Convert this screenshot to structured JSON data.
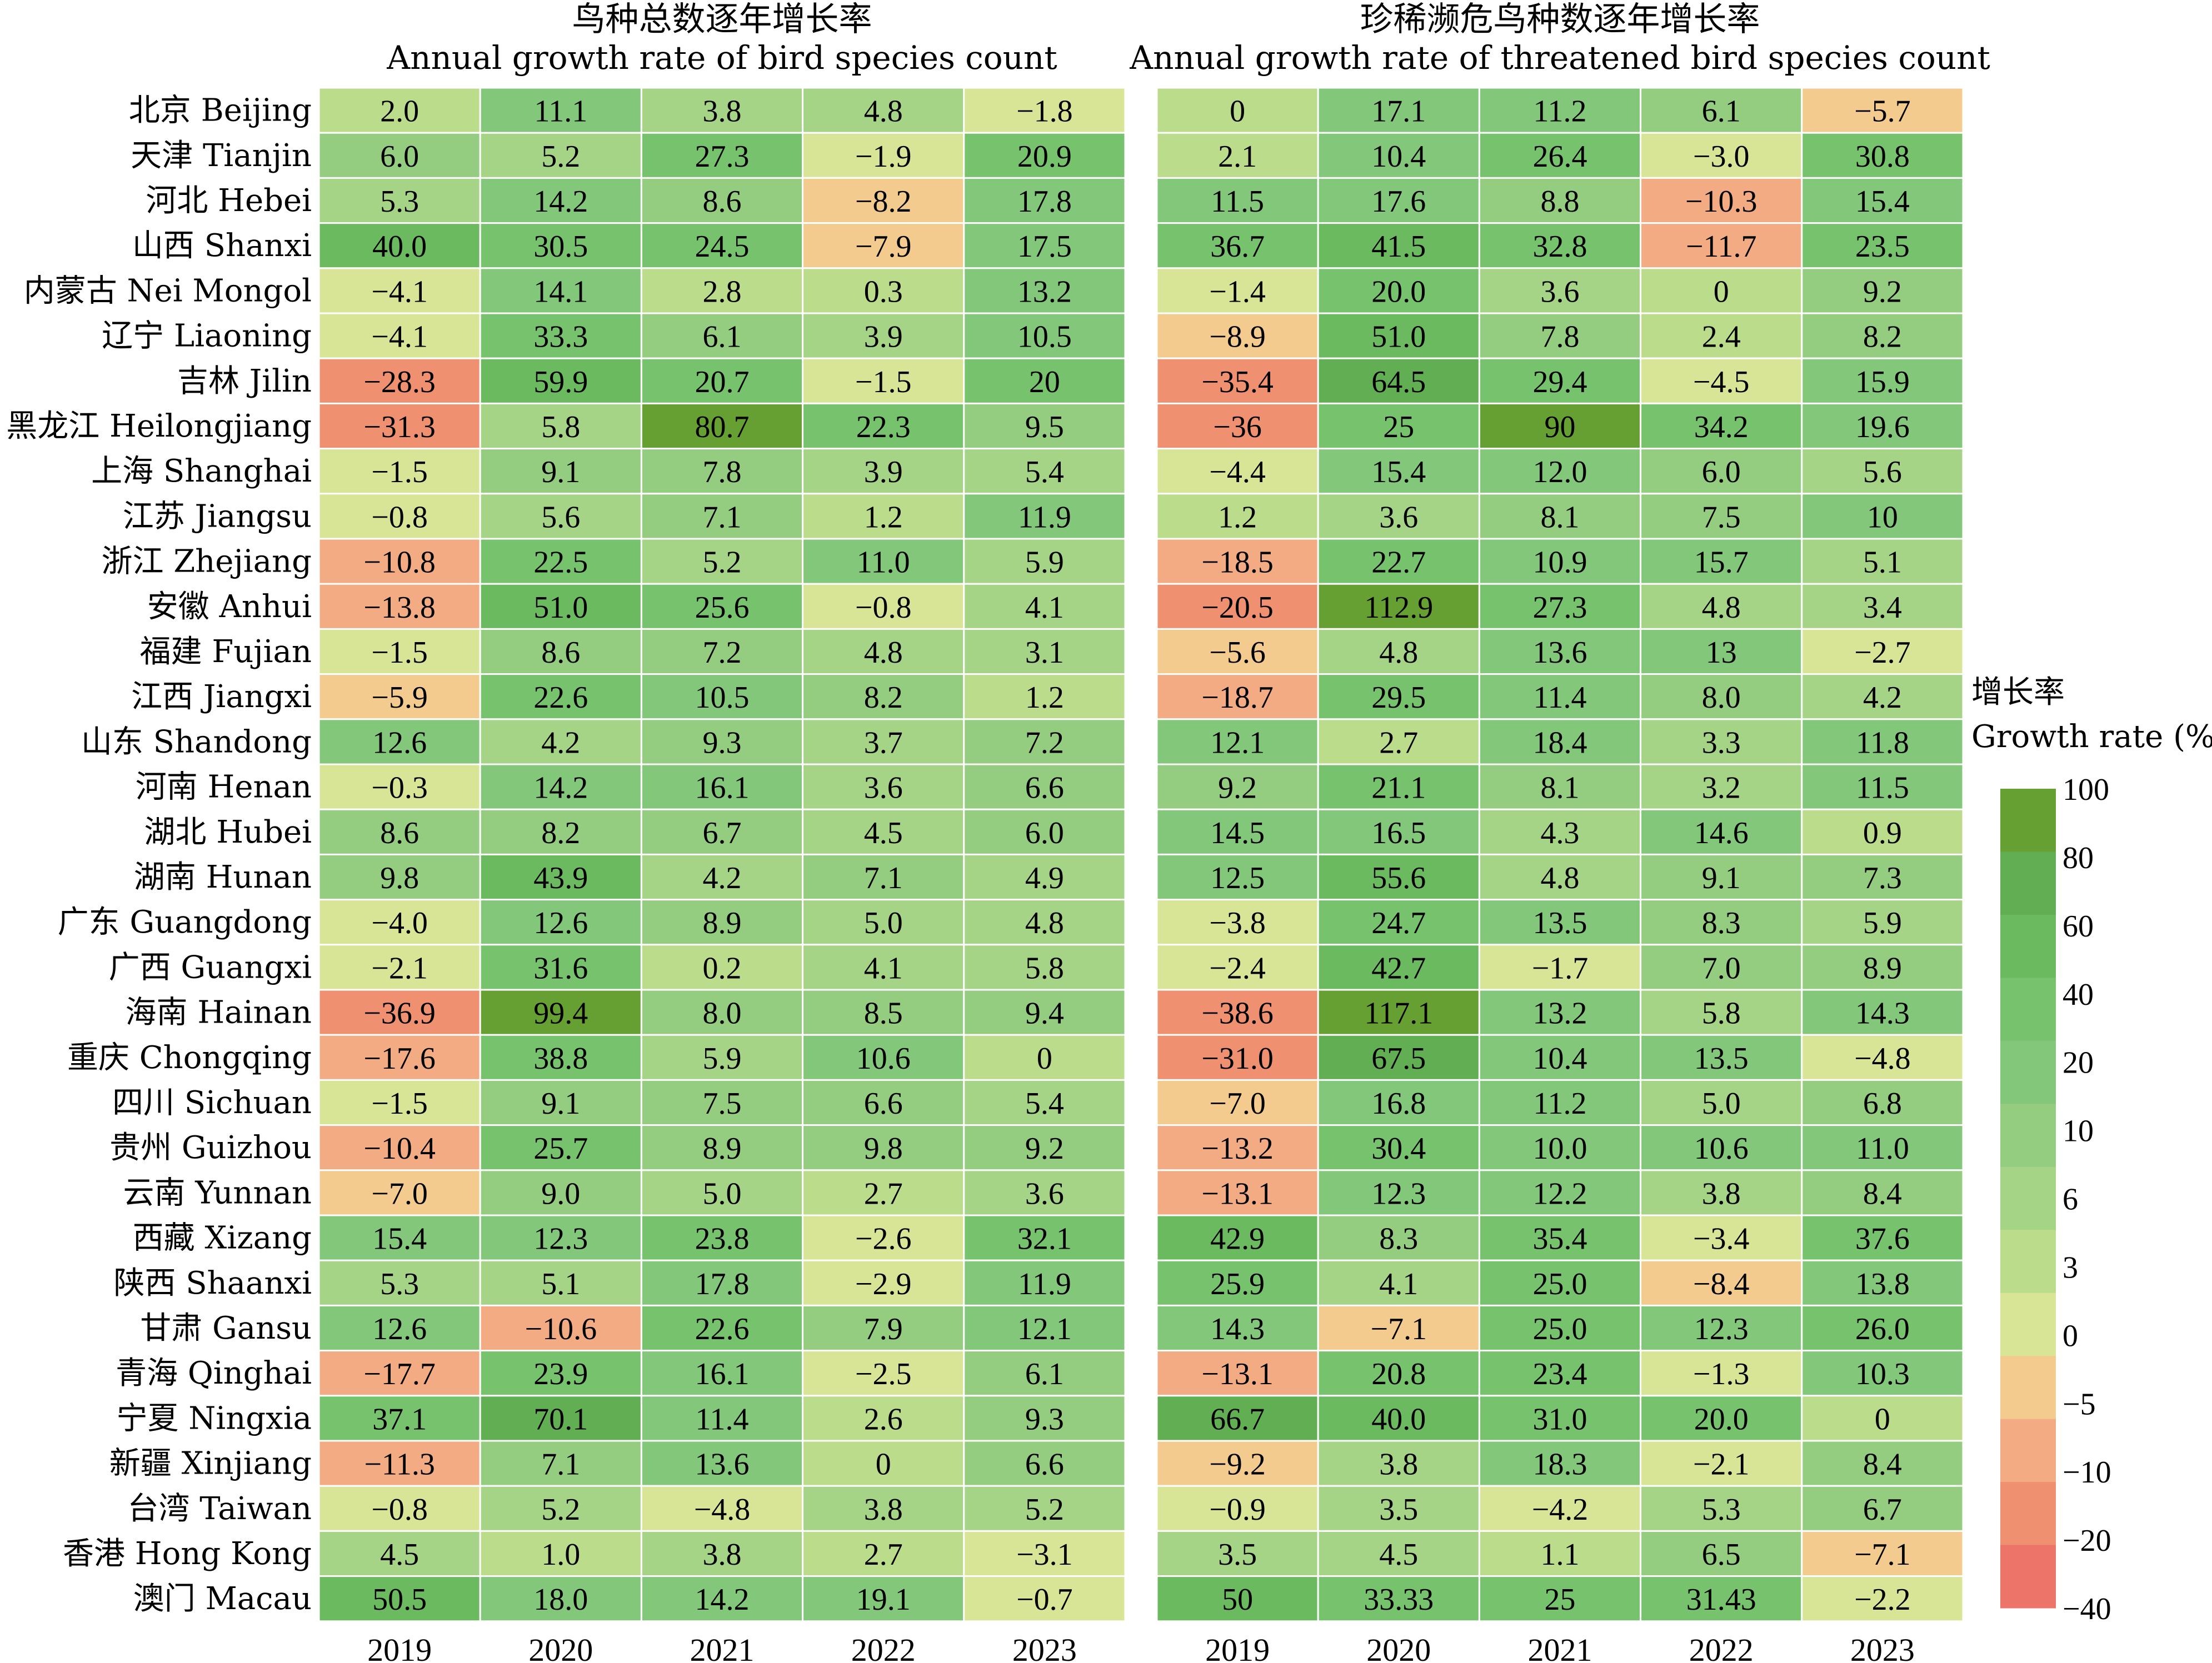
{
  "chart_data": {
    "type": "heatmap",
    "categories": [
      "2019",
      "2020",
      "2021",
      "2022",
      "2023"
    ],
    "rows": [
      "北京 Beijing",
      "天津 Tianjin",
      "河北 Hebei",
      "山西 Shanxi",
      "内蒙古 Nei Mongol",
      "辽宁 Liaoning",
      "吉林 Jilin",
      "黑龙江 Heilongjiang",
      "上海 Shanghai",
      "江苏 Jiangsu",
      "浙江 Zhejiang",
      "安徽 Anhui",
      "福建 Fujian",
      "江西 Jiangxi",
      "山东 Shandong",
      "河南 Henan",
      "湖北 Hubei",
      "湖南 Hunan",
      "广东 Guangdong",
      "广西 Guangxi",
      "海南 Hainan",
      "重庆 Chongqing",
      "四川 Sichuan",
      "贵州 Guizhou",
      "云南 Yunnan",
      "西藏 Xizang",
      "陕西 Shaanxi",
      "甘肃 Gansu",
      "青海 Qinghai",
      "宁夏 Ningxia",
      "新疆 Xinjiang",
      "台湾 Taiwan",
      "香港 Hong Kong",
      "澳门 Macau"
    ],
    "panels": [
      {
        "title_zh": "鸟种总数逐年增长率",
        "title_en": "Annual growth rate of bird species count",
        "values": [
          [
            "2.0",
            "11.1",
            "3.8",
            "4.8",
            "−1.8"
          ],
          [
            "6.0",
            "5.2",
            "27.3",
            "−1.9",
            "20.9"
          ],
          [
            "5.3",
            "14.2",
            "8.6",
            "−8.2",
            "17.8"
          ],
          [
            "40.0",
            "30.5",
            "24.5",
            "−7.9",
            "17.5"
          ],
          [
            "−4.1",
            "14.1",
            "2.8",
            "0.3",
            "13.2"
          ],
          [
            "−4.1",
            "33.3",
            "6.1",
            "3.9",
            "10.5"
          ],
          [
            "−28.3",
            "59.9",
            "20.7",
            "−1.5",
            "20"
          ],
          [
            "−31.3",
            "5.8",
            "80.7",
            "22.3",
            "9.5"
          ],
          [
            "−1.5",
            "9.1",
            "7.8",
            "3.9",
            "5.4"
          ],
          [
            "−0.8",
            "5.6",
            "7.1",
            "1.2",
            "11.9"
          ],
          [
            "−10.8",
            "22.5",
            "5.2",
            "11.0",
            "5.9"
          ],
          [
            "−13.8",
            "51.0",
            "25.6",
            "−0.8",
            "4.1"
          ],
          [
            "−1.5",
            "8.6",
            "7.2",
            "4.8",
            "3.1"
          ],
          [
            "−5.9",
            "22.6",
            "10.5",
            "8.2",
            "1.2"
          ],
          [
            "12.6",
            "4.2",
            "9.3",
            "3.7",
            "7.2"
          ],
          [
            "−0.3",
            "14.2",
            "16.1",
            "3.6",
            "6.6"
          ],
          [
            "8.6",
            "8.2",
            "6.7",
            "4.5",
            "6.0"
          ],
          [
            "9.8",
            "43.9",
            "4.2",
            "7.1",
            "4.9"
          ],
          [
            "−4.0",
            "12.6",
            "8.9",
            "5.0",
            "4.8"
          ],
          [
            "−2.1",
            "31.6",
            "0.2",
            "4.1",
            "5.8"
          ],
          [
            "−36.9",
            "99.4",
            "8.0",
            "8.5",
            "9.4"
          ],
          [
            "−17.6",
            "38.8",
            "5.9",
            "10.6",
            "0"
          ],
          [
            "−1.5",
            "9.1",
            "7.5",
            "6.6",
            "5.4"
          ],
          [
            "−10.4",
            "25.7",
            "8.9",
            "9.8",
            "9.2"
          ],
          [
            "−7.0",
            "9.0",
            "5.0",
            "2.7",
            "3.6"
          ],
          [
            "15.4",
            "12.3",
            "23.8",
            "−2.6",
            "32.1"
          ],
          [
            "5.3",
            "5.1",
            "17.8",
            "−2.9",
            "11.9"
          ],
          [
            "12.6",
            "−10.6",
            "22.6",
            "7.9",
            "12.1"
          ],
          [
            "−17.7",
            "23.9",
            "16.1",
            "−2.5",
            "6.1"
          ],
          [
            "37.1",
            "70.1",
            "11.4",
            "2.6",
            "9.3"
          ],
          [
            "−11.3",
            "7.1",
            "13.6",
            "0",
            "6.6"
          ],
          [
            "−0.8",
            "5.2",
            "−4.8",
            "3.8",
            "5.2"
          ],
          [
            "4.5",
            "1.0",
            "3.8",
            "2.7",
            "−3.1"
          ],
          [
            "50.5",
            "18.0",
            "14.2",
            "19.1",
            "−0.7"
          ]
        ]
      },
      {
        "title_zh": "珍稀濒危鸟种数逐年增长率",
        "title_en": "Annual growth rate of threatened bird species count",
        "values": [
          [
            "0",
            "17.1",
            "11.2",
            "6.1",
            "−5.7"
          ],
          [
            "2.1",
            "10.4",
            "26.4",
            "−3.0",
            "30.8"
          ],
          [
            "11.5",
            "17.6",
            "8.8",
            "−10.3",
            "15.4"
          ],
          [
            "36.7",
            "41.5",
            "32.8",
            "−11.7",
            "23.5"
          ],
          [
            "−1.4",
            "20.0",
            "3.6",
            "0",
            "9.2"
          ],
          [
            "−8.9",
            "51.0",
            "7.8",
            "2.4",
            "8.2"
          ],
          [
            "−35.4",
            "64.5",
            "29.4",
            "−4.5",
            "15.9"
          ],
          [
            "−36",
            "25",
            "90",
            "34.2",
            "19.6"
          ],
          [
            "−4.4",
            "15.4",
            "12.0",
            "6.0",
            "5.6"
          ],
          [
            "1.2",
            "3.6",
            "8.1",
            "7.5",
            "10"
          ],
          [
            "−18.5",
            "22.7",
            "10.9",
            "15.7",
            "5.1"
          ],
          [
            "−20.5",
            "112.9",
            "27.3",
            "4.8",
            "3.4"
          ],
          [
            "−5.6",
            "4.8",
            "13.6",
            "13",
            "−2.7"
          ],
          [
            "−18.7",
            "29.5",
            "11.4",
            "8.0",
            "4.2"
          ],
          [
            "12.1",
            "2.7",
            "18.4",
            "3.3",
            "11.8"
          ],
          [
            "9.2",
            "21.1",
            "8.1",
            "3.2",
            "11.5"
          ],
          [
            "14.5",
            "16.5",
            "4.3",
            "14.6",
            "0.9"
          ],
          [
            "12.5",
            "55.6",
            "4.8",
            "9.1",
            "7.3"
          ],
          [
            "−3.8",
            "24.7",
            "13.5",
            "8.3",
            "5.9"
          ],
          [
            "−2.4",
            "42.7",
            "−1.7",
            "7.0",
            "8.9"
          ],
          [
            "−38.6",
            "117.1",
            "13.2",
            "5.8",
            "14.3"
          ],
          [
            "−31.0",
            "67.5",
            "10.4",
            "13.5",
            "−4.8"
          ],
          [
            "−7.0",
            "16.8",
            "11.2",
            "5.0",
            "6.8"
          ],
          [
            "−13.2",
            "30.4",
            "10.0",
            "10.6",
            "11.0"
          ],
          [
            "−13.1",
            "12.3",
            "12.2",
            "3.8",
            "8.4"
          ],
          [
            "42.9",
            "8.3",
            "35.4",
            "−3.4",
            "37.6"
          ],
          [
            "25.9",
            "4.1",
            "25.0",
            "−8.4",
            "13.8"
          ],
          [
            "14.3",
            "−7.1",
            "25.0",
            "12.3",
            "26.0"
          ],
          [
            "−13.1",
            "20.8",
            "23.4",
            "−1.3",
            "10.3"
          ],
          [
            "66.7",
            "40.0",
            "31.0",
            "20.0",
            "0"
          ],
          [
            "−9.2",
            "3.8",
            "18.3",
            "−2.1",
            "8.4"
          ],
          [
            "−0.9",
            "3.5",
            "−4.2",
            "5.3",
            "6.7"
          ],
          [
            "3.5",
            "4.5",
            "1.1",
            "6.5",
            "−7.1"
          ],
          [
            "50",
            "33.33",
            "25",
            "31.43",
            "−2.2"
          ]
        ]
      }
    ],
    "colorbar": {
      "title_zh": "增长率",
      "title_en": "Growth rate (%)",
      "ticks": [
        "100",
        "80",
        "60",
        "40",
        "20",
        "10",
        "6",
        "3",
        "0",
        "−5",
        "−10",
        "−20",
        "−40"
      ],
      "bounds": [
        100,
        80,
        60,
        40,
        20,
        10,
        6,
        3,
        0,
        -5,
        -10,
        -20,
        -40
      ],
      "colors": [
        "#66a032",
        "#62ae52",
        "#6cba5f",
        "#77c26c",
        "#83c77a",
        "#94cc80",
        "#a6d486",
        "#bbdc8a",
        "#d9e596",
        "#f4cb8e",
        "#f2ab82",
        "#ef9070",
        "#ec7469"
      ]
    }
  }
}
